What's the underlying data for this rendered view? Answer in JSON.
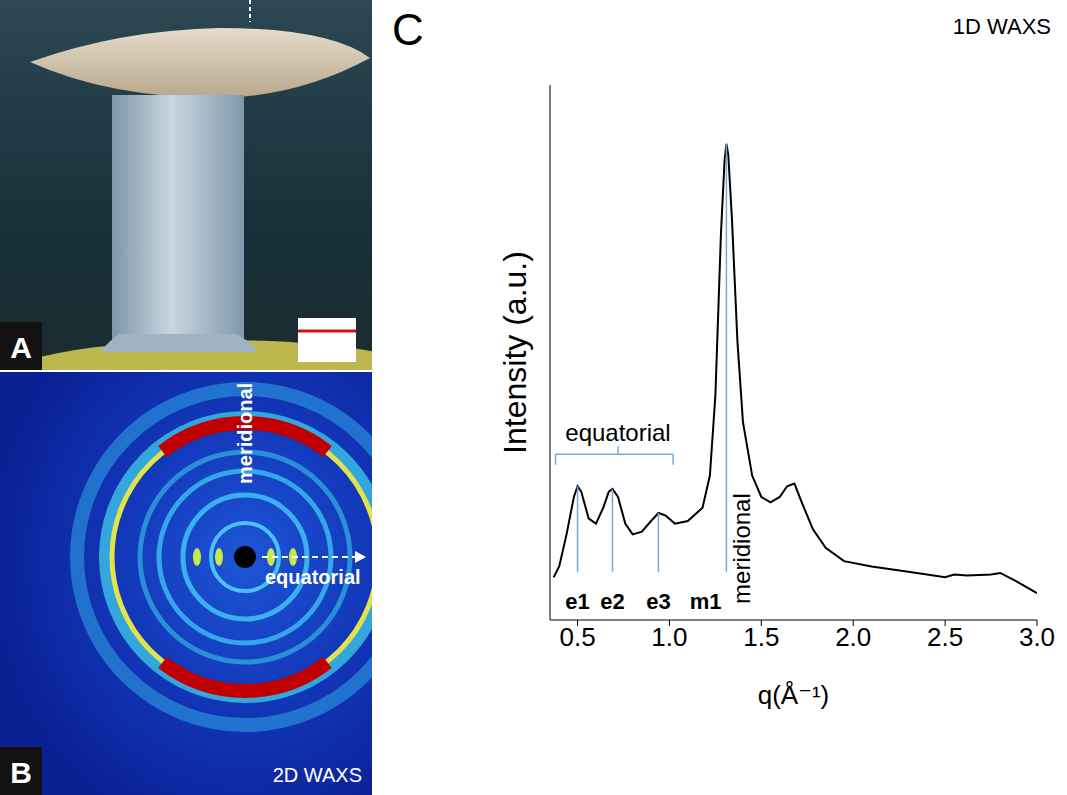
{
  "panels": {
    "A": {
      "letter": "A"
    },
    "B": {
      "letter": "B",
      "label": "2D WAXS",
      "directions": [
        "meridional",
        "equatorial"
      ]
    },
    "C": {
      "letter": "C"
    }
  },
  "chart_data": {
    "type": "line",
    "title": "1D WAXS",
    "x_label": "q(Å⁻¹)",
    "y_label": "Intensity (a.u.)",
    "x": [
      0.37,
      0.4,
      0.44,
      0.48,
      0.5,
      0.52,
      0.56,
      0.6,
      0.64,
      0.67,
      0.69,
      0.72,
      0.76,
      0.8,
      0.85,
      0.9,
      0.94,
      0.98,
      1.03,
      1.1,
      1.18,
      1.22,
      1.25,
      1.28,
      1.3,
      1.31,
      1.32,
      1.34,
      1.37,
      1.4,
      1.45,
      1.5,
      1.55,
      1.6,
      1.64,
      1.68,
      1.72,
      1.78,
      1.85,
      1.95,
      2.1,
      2.3,
      2.5,
      2.55,
      2.62,
      2.75,
      2.8,
      2.9,
      3.0
    ],
    "values": [
      8,
      10,
      16,
      23,
      25,
      24,
      19,
      18,
      21,
      24,
      24.5,
      23,
      18,
      16,
      16.5,
      18.5,
      20,
      19.5,
      18,
      18.5,
      21,
      27,
      42,
      72,
      86,
      89,
      87,
      75,
      52,
      37,
      27,
      23,
      22,
      23,
      25,
      25.5,
      22,
      17,
      13.5,
      11,
      10,
      9,
      8,
      8.5,
      8.3,
      8.5,
      8.8,
      7,
      5
    ],
    "color": "#000000",
    "xlim": [
      0.35,
      3.0
    ],
    "xticks": [
      0.5,
      {
        "value": 1,
        "label": "1.0"
      },
      1.5,
      {
        "value": 2,
        "label": "2.0"
      },
      2.5,
      {
        "value": 3,
        "label": "3.0"
      }
    ],
    "ylim": [
      0,
      100
    ],
    "tick_labels": "x",
    "grid": false,
    "annotations": [
      {
        "text": "equatorial",
        "peaks": [
          {
            "label": "e1",
            "x": 0.5
          },
          {
            "label": "e2",
            "x": 0.69
          },
          {
            "label": "e3",
            "x": 0.94
          }
        ]
      },
      {
        "text": "meridional",
        "peaks": [
          {
            "label": "m1",
            "x": 1.31
          }
        ]
      }
    ]
  }
}
